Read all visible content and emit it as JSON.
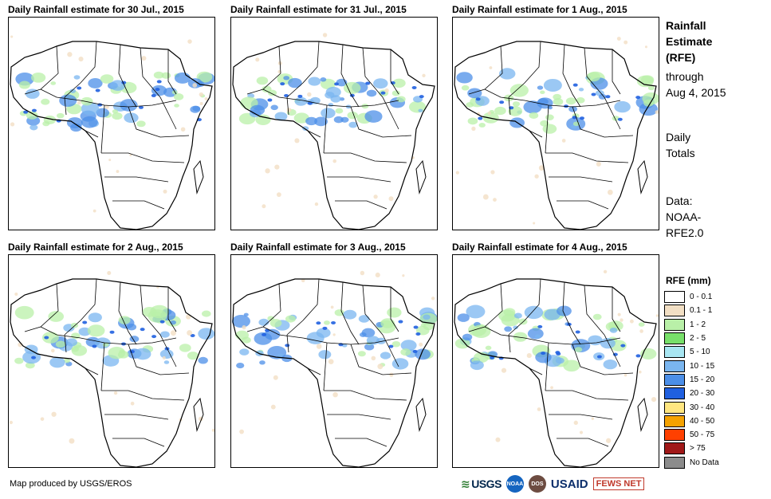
{
  "panels": [
    {
      "title": "Daily Rainfall estimate for 30 Jul., 2015"
    },
    {
      "title": "Daily Rainfall estimate for 31 Jul., 2015"
    },
    {
      "title": "Daily Rainfall estimate for 1 Aug., 2015"
    },
    {
      "title": "Daily Rainfall estimate for 2 Aug., 2015"
    },
    {
      "title": "Daily Rainfall estimate for 3 Aug., 2015"
    },
    {
      "title": "Daily Rainfall estimate for 4 Aug., 2015"
    }
  ],
  "side": {
    "title_line1": "Rainfall",
    "title_line2": "Estimate",
    "title_line3": "(RFE)",
    "through": "through",
    "date": "Aug 4, 2015",
    "daily": "Daily",
    "totals": "Totals",
    "data_label": "Data:",
    "source_line1": "NOAA-",
    "source_line2": "RFE2.0"
  },
  "legend": {
    "title": "RFE (mm)",
    "items": [
      {
        "label": "0 - 0.1",
        "color": "#ffffff"
      },
      {
        "label": "0.1 - 1",
        "color": "#f2dfc4"
      },
      {
        "label": "1 - 2",
        "color": "#b9f0a8"
      },
      {
        "label": "2 - 5",
        "color": "#78e06a"
      },
      {
        "label": "5 - 10",
        "color": "#a8e6f2"
      },
      {
        "label": "10 - 15",
        "color": "#7ab6f0"
      },
      {
        "label": "15 - 20",
        "color": "#4c8fe8"
      },
      {
        "label": "20 - 30",
        "color": "#2060e0"
      },
      {
        "label": "30 - 40",
        "color": "#ffe680"
      },
      {
        "label": "40 - 50",
        "color": "#f5a200"
      },
      {
        "label": "50 - 75",
        "color": "#ff4000"
      },
      {
        "label": "> 75",
        "color": "#a01818"
      },
      {
        "label": "No Data",
        "color": "#8c8c8c"
      }
    ]
  },
  "footer": {
    "credit": "Map produced by USGS/EROS",
    "logos": {
      "usgs": "USGS",
      "noaa": "NOAA",
      "dos": "DOS",
      "usaid": "USAID",
      "fews": "FEWS NET"
    }
  }
}
